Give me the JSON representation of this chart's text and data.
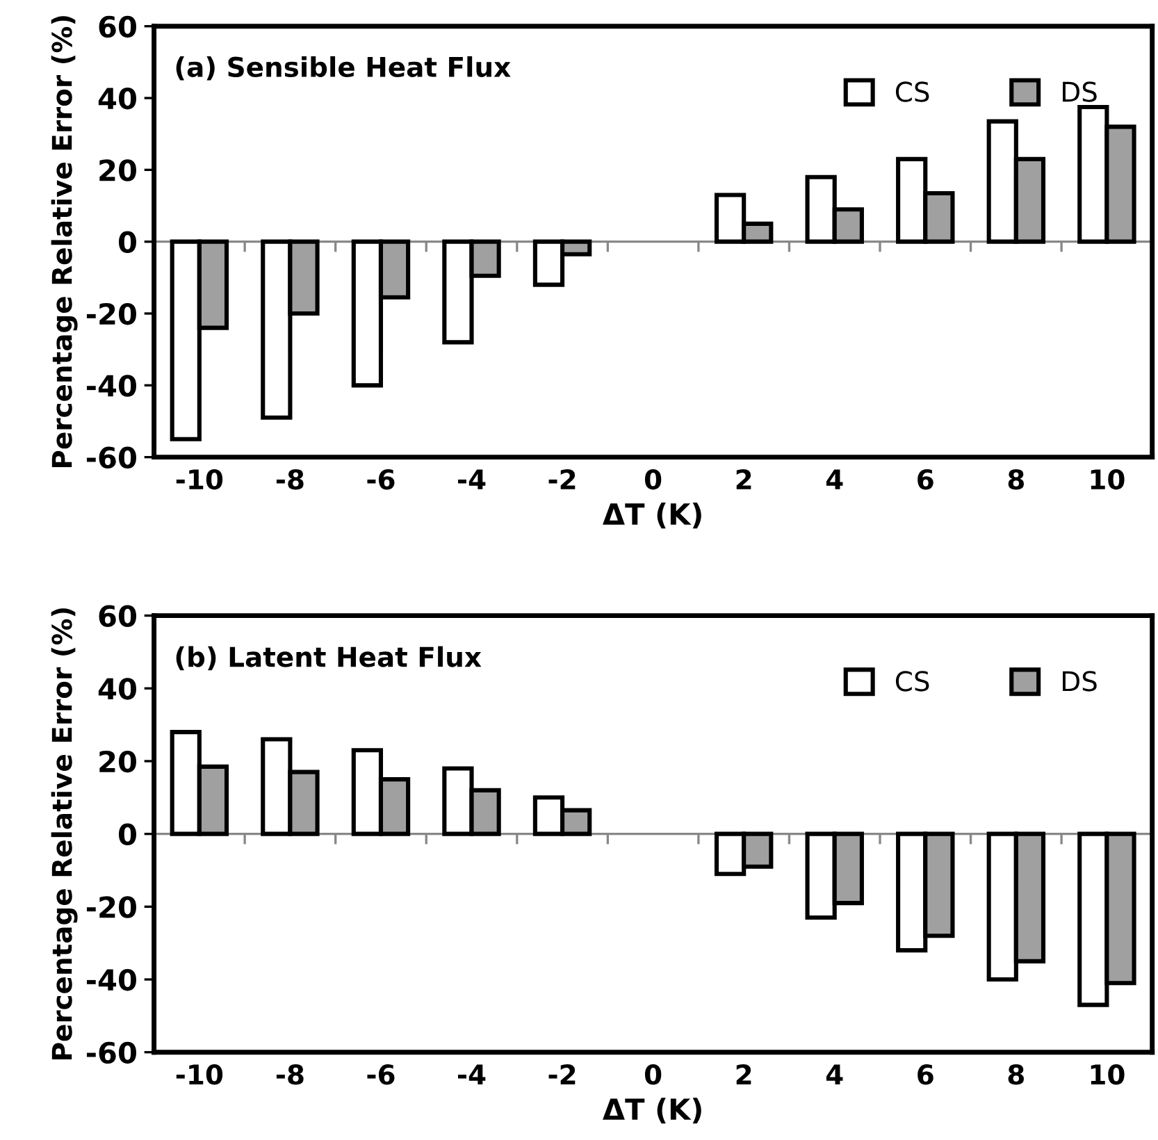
{
  "chart_data": [
    {
      "type": "bar",
      "title": "(a) Sensible Heat Flux",
      "xlabel": "ΔT (K)",
      "ylabel": "Percentage Relative Error (%)",
      "categories": [
        "-10",
        "-8",
        "-6",
        "-4",
        "-2",
        "0",
        "2",
        "4",
        "6",
        "8",
        "10"
      ],
      "series": [
        {
          "name": "CS",
          "color": "#ffffff",
          "values": [
            -55,
            -49,
            -40,
            -28,
            -12,
            null,
            13,
            18,
            23,
            33.5,
            37.5
          ]
        },
        {
          "name": "DS",
          "color": "#a0a0a0",
          "values": [
            -24,
            -20,
            -15.5,
            -9.5,
            -3.5,
            null,
            5,
            9,
            13.5,
            23,
            32
          ]
        }
      ],
      "ylim": [
        -60,
        60
      ],
      "yticks": [
        -60,
        -40,
        -20,
        0,
        20,
        40,
        60
      ],
      "grid": false,
      "legend": "top right",
      "ref_lines": [
        {
          "axis": "y",
          "value": 0,
          "color": "#888888"
        }
      ]
    },
    {
      "type": "bar",
      "title": "(b) Latent Heat Flux",
      "xlabel": "ΔT (K)",
      "ylabel": "Percentage Relative Error (%)",
      "categories": [
        "-10",
        "-8",
        "-6",
        "-4",
        "-2",
        "0",
        "2",
        "4",
        "6",
        "8",
        "10"
      ],
      "series": [
        {
          "name": "CS",
          "color": "#ffffff",
          "values": [
            28,
            26,
            23,
            18,
            10,
            null,
            -11,
            -23,
            -32,
            -40,
            -47
          ]
        },
        {
          "name": "DS",
          "color": "#a0a0a0",
          "values": [
            18.5,
            17,
            15,
            12,
            6.5,
            null,
            -9,
            -19,
            -28,
            -35,
            -41
          ]
        }
      ],
      "ylim": [
        -60,
        60
      ],
      "yticks": [
        -60,
        -40,
        -20,
        0,
        20,
        40,
        60
      ],
      "grid": false,
      "legend": "top right",
      "ref_lines": [
        {
          "axis": "y",
          "value": 0,
          "color": "#888888"
        }
      ]
    }
  ]
}
